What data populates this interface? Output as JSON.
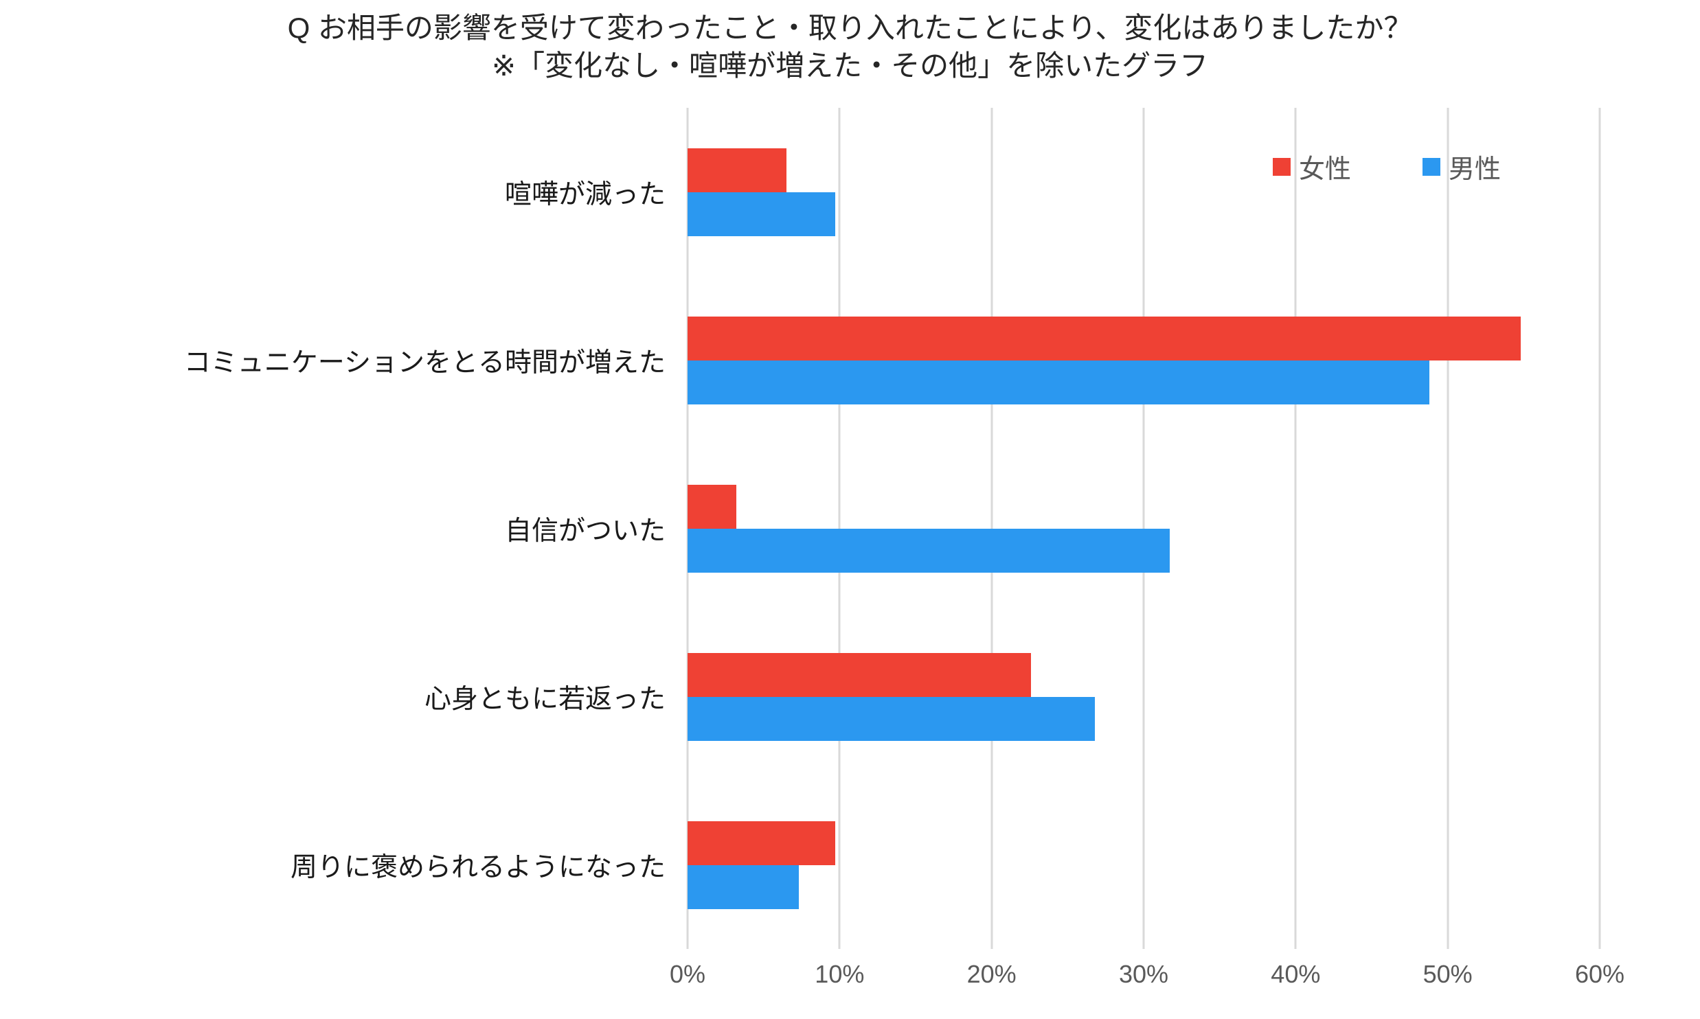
{
  "title": {
    "line1": "Q お相手の影響を受けて変わったこと・取り入れたことにより、変化はありましたか？",
    "line2": "※「変化なし・喧嘩が増えた・その他」を除いたグラフ"
  },
  "legend": {
    "items": [
      {
        "label": "女性",
        "color": "#ef4134"
      },
      {
        "label": "男性",
        "color": "#2b98f0"
      }
    ]
  },
  "chart_data": {
    "type": "bar",
    "orientation": "horizontal",
    "title": "Q お相手の影響を受けて変わったこと・取り入れたことにより、変化はありましたか？ ※「変化なし・喧嘩が増えた・その他」を除いたグラフ",
    "categories": [
      "喧嘩が減った",
      "コミュニケーションをとる時間が増えた",
      "自信がついた",
      "心身ともに若返った",
      "周りに褒められるようになった"
    ],
    "series": [
      {
        "name": "女性",
        "color": "#ef4134",
        "values": [
          6.5,
          54.8,
          3.2,
          22.6,
          9.7
        ]
      },
      {
        "name": "男性",
        "color": "#2b98f0",
        "values": [
          9.7,
          48.8,
          31.7,
          26.8,
          7.3
        ]
      }
    ],
    "xlabel": "",
    "ylabel": "",
    "xlim": [
      0,
      60
    ],
    "tick_labels": [
      "0%",
      "10%",
      "20%",
      "30%",
      "40%",
      "50%",
      "60%"
    ],
    "tick_values": [
      0,
      10,
      20,
      30,
      40,
      50,
      60
    ],
    "grid": true,
    "legend_position": "top-right-inside",
    "colors": {
      "gridline": "#d9d9d9",
      "axis_text": "#595959",
      "category_text": "#1a1a1a",
      "title_text": "#262626",
      "background": "#ffffff"
    }
  }
}
